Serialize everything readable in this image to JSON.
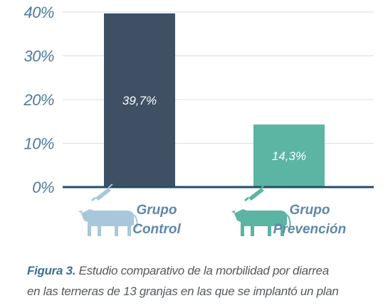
{
  "chart_data": {
    "type": "bar",
    "categories": [
      "Grupo Control",
      "Grupo Prevención"
    ],
    "category_lines": [
      [
        "Grupo",
        "Control"
      ],
      [
        "Grupo",
        "Prevención"
      ]
    ],
    "values": [
      39.7,
      14.3
    ],
    "value_labels": [
      "39,7%",
      "14,3%"
    ],
    "bar_colors": [
      "#3f5065",
      "#5bb5a2"
    ],
    "ylim": [
      0,
      40
    ],
    "yticks": [
      0,
      10,
      20,
      30,
      40
    ],
    "ytick_labels": [
      "0%",
      "10%",
      "20%",
      "30%",
      "40%"
    ],
    "grid": true,
    "icons": [
      "calf-with-syringe-icon",
      "calf-with-syringe-icon"
    ],
    "icon_colors": [
      "#a9c7db",
      "#5bb5a2"
    ],
    "axis_color": "#1f4e6e",
    "grid_color": "#d9dde0"
  },
  "caption": {
    "label": "Figura 3.",
    "text_line1": " Estudio comparativo de la morbilidad por diarrea",
    "text_line2": "en las terneras de 13 granjas en las que se implantó un plan"
  }
}
